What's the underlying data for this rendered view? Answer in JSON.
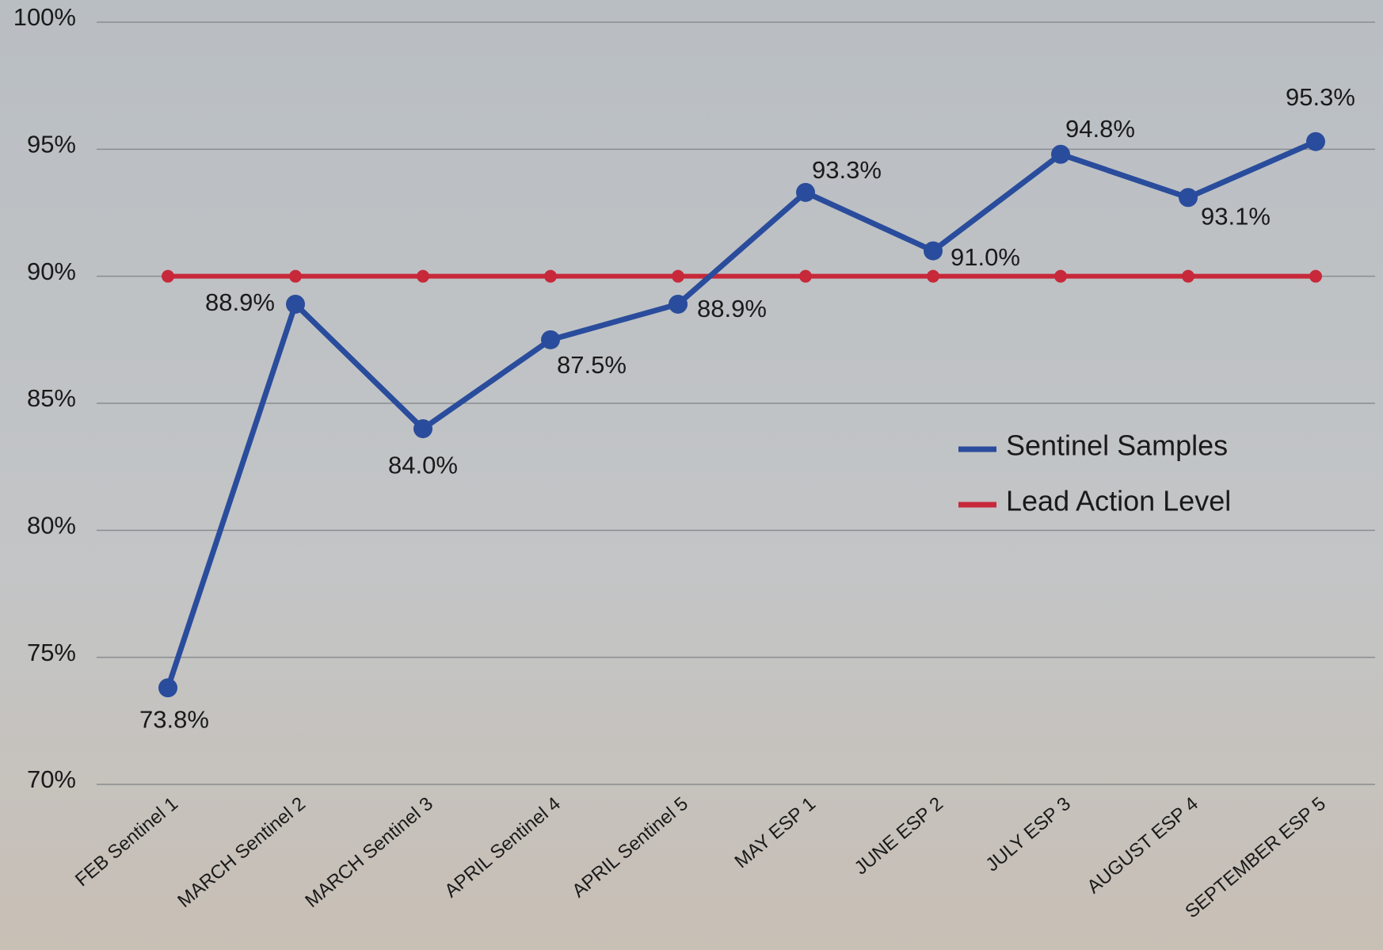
{
  "chart_data": {
    "type": "line",
    "categories": [
      "FEB Sentinel 1",
      "MARCH Sentinel 2",
      "MARCH Sentinel 3",
      "APRIL Sentinel 4",
      "APRIL Sentinel 5",
      "MAY ESP 1",
      "JUNE ESP 2",
      "JULY ESP 3",
      "AUGUST ESP 4",
      "SEPTEMBER ESP 5"
    ],
    "series": [
      {
        "name": "Sentinel Samples",
        "color": "#2a4c9c",
        "values": [
          73.8,
          88.9,
          84.0,
          87.5,
          88.9,
          93.3,
          91.0,
          94.8,
          93.1,
          95.3
        ],
        "value_labels": [
          "73.8%",
          "88.9%",
          "84.0%",
          "87.5%",
          "88.9%",
          "93.3%",
          "91.0%",
          "94.8%",
          "93.1%",
          "95.3%"
        ]
      },
      {
        "name": "Lead Action Level",
        "color": "#c7293a",
        "values": [
          90,
          90,
          90,
          90,
          90,
          90,
          90,
          90,
          90,
          90
        ]
      }
    ],
    "ylim": [
      70,
      100
    ],
    "yticks": [
      {
        "value": 70,
        "label": "70%"
      },
      {
        "value": 75,
        "label": "75%"
      },
      {
        "value": 80,
        "label": "80%"
      },
      {
        "value": 85,
        "label": "85%"
      },
      {
        "value": 90,
        "label": "90%"
      },
      {
        "value": 95,
        "label": "95%"
      },
      {
        "value": 100,
        "label": "100%"
      }
    ],
    "grid": true,
    "legend": "right"
  }
}
